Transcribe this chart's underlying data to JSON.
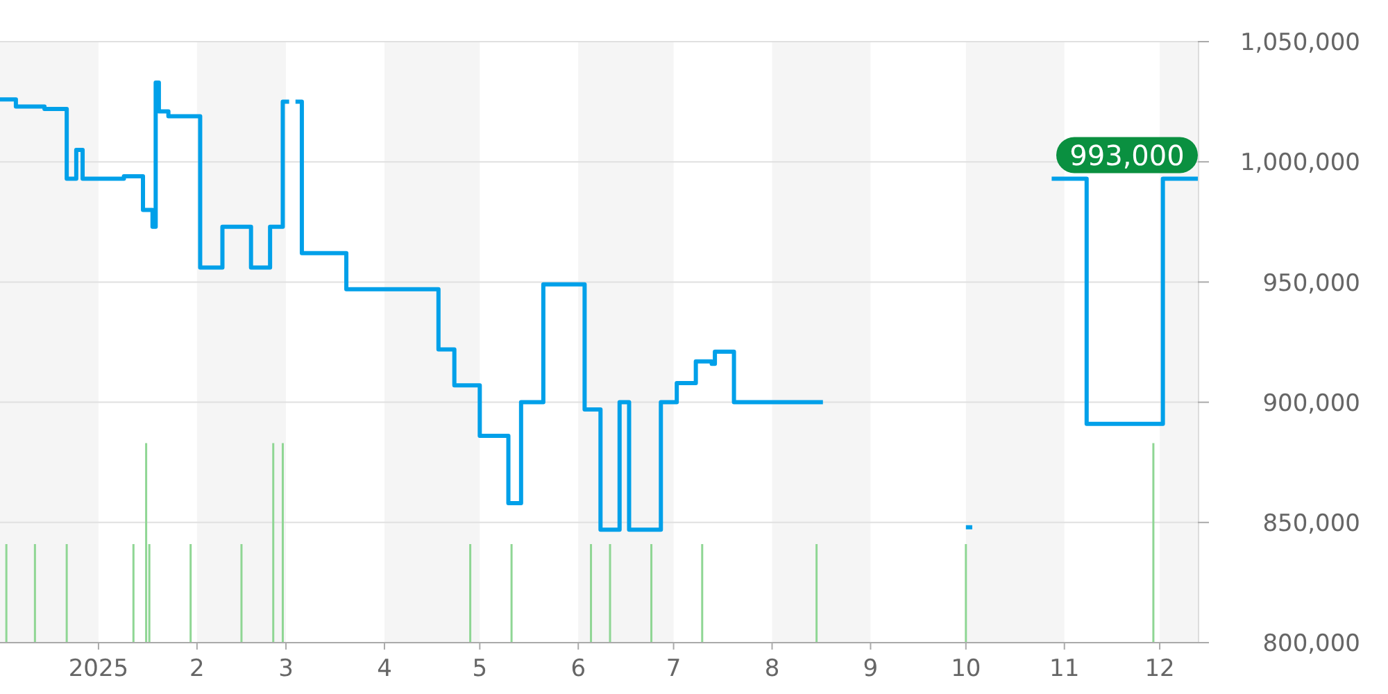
{
  "chart_data": {
    "type": "step",
    "xlim": [
      "2024-12-01",
      "2025-12-13"
    ],
    "ylim": [
      800000,
      1050000
    ],
    "xticks": [
      {
        "value": "2025-01-01",
        "label": "2025"
      },
      {
        "value": "2025-02-01",
        "label": "2"
      },
      {
        "value": "2025-03-01",
        "label": "3"
      },
      {
        "value": "2025-04-01",
        "label": "4"
      },
      {
        "value": "2025-05-01",
        "label": "5"
      },
      {
        "value": "2025-06-01",
        "label": "6"
      },
      {
        "value": "2025-07-01",
        "label": "7"
      },
      {
        "value": "2025-08-01",
        "label": "8"
      },
      {
        "value": "2025-09-01",
        "label": "9"
      },
      {
        "value": "2025-10-01",
        "label": "10"
      },
      {
        "value": "2025-11-01",
        "label": "11"
      },
      {
        "value": "2025-12-01",
        "label": "12"
      }
    ],
    "yticks": [
      {
        "value": 800000,
        "label": "800,000"
      },
      {
        "value": 850000,
        "label": "850,000"
      },
      {
        "value": 900000,
        "label": "900,000"
      },
      {
        "value": 950000,
        "label": "950,000"
      },
      {
        "value": 1000000,
        "label": "1,000,000"
      },
      {
        "value": 1050000,
        "label": "1,050,000"
      }
    ],
    "grid": "y",
    "bands": [
      {
        "axis": "x",
        "from": "2024-12-01",
        "to": "2025-01-01",
        "color": "#f5f5f5"
      },
      {
        "axis": "x",
        "from": "2025-02-01",
        "to": "2025-03-01",
        "color": "#f5f5f5"
      },
      {
        "axis": "x",
        "from": "2025-04-01",
        "to": "2025-05-01",
        "color": "#f5f5f5"
      },
      {
        "axis": "x",
        "from": "2025-06-01",
        "to": "2025-07-01",
        "color": "#f5f5f5"
      },
      {
        "axis": "x",
        "from": "2025-08-01",
        "to": "2025-09-01",
        "color": "#f5f5f5"
      },
      {
        "axis": "x",
        "from": "2025-10-01",
        "to": "2025-11-01",
        "color": "#f5f5f5"
      },
      {
        "axis": "x",
        "from": "2025-12-01",
        "to": "2025-12-13",
        "color": "#f5f5f5"
      }
    ],
    "annotations": [
      {
        "text": "993,000",
        "x": "2025-12-13",
        "y": 993000
      }
    ],
    "series": [
      {
        "color": "#00a0e9",
        "x": [
          "2024-12-01",
          "2024-12-06",
          "2024-12-15",
          "2024-12-22",
          "2024-12-25",
          "2024-12-27",
          "2025-01-09",
          "2025-01-15",
          "2025-01-18",
          "2025-01-19",
          "2025-01-20",
          "2025-01-23",
          "2025-02-02",
          "2025-02-09",
          "2025-02-18",
          "2025-02-24",
          "2025-02-28",
          "2025-03-02",
          "2025-03-03",
          "2025-03-04",
          "2025-03-06",
          "2025-03-20",
          "2025-04-18",
          "2025-04-23",
          "2025-05-01",
          "2025-05-10",
          "2025-05-14",
          "2025-05-21",
          "2025-06-03",
          "2025-06-08",
          "2025-06-14",
          "2025-06-17",
          "2025-06-27",
          "2025-07-02",
          "2025-07-08",
          "2025-07-13",
          "2025-07-14",
          "2025-07-20",
          "2025-08-17",
          "2025-08-18",
          "2025-10-01",
          "2025-10-03",
          "2025-10-04",
          "2025-10-28",
          "2025-11-08",
          "2025-12-02",
          "2025-12-13"
        ],
        "values": [
          1026000,
          1023000,
          1022000,
          993000,
          1005000,
          993000,
          994000,
          980000,
          973000,
          1033000,
          1021000,
          1019000,
          956000,
          973000,
          956000,
          973000,
          1025000,
          1025000,
          null,
          1025000,
          962000,
          947000,
          922000,
          907000,
          886000,
          858000,
          900000,
          949000,
          897000,
          847000,
          900000,
          847000,
          900000,
          908000,
          917000,
          916000,
          921000,
          900000,
          900000,
          null,
          848000,
          848000,
          null,
          993000,
          891000,
          993000,
          993000
        ]
      },
      {
        "type": "bar",
        "color": "#8fd694",
        "x": [
          "2024-12-03",
          "2024-12-12",
          "2024-12-22",
          "2025-01-12",
          "2025-01-16",
          "2025-01-17",
          "2025-01-30",
          "2025-02-15",
          "2025-02-25",
          "2025-02-28",
          "2025-04-28",
          "2025-05-11",
          "2025-06-05",
          "2025-06-11",
          "2025-06-24",
          "2025-07-10",
          "2025-08-15",
          "2025-10-01",
          "2025-11-29"
        ],
        "values": [
          841000,
          841000,
          841000,
          841000,
          883000,
          841000,
          841000,
          841000,
          883000,
          883000,
          841000,
          841000,
          841000,
          841000,
          841000,
          841000,
          841000,
          841000,
          883000
        ]
      }
    ]
  }
}
